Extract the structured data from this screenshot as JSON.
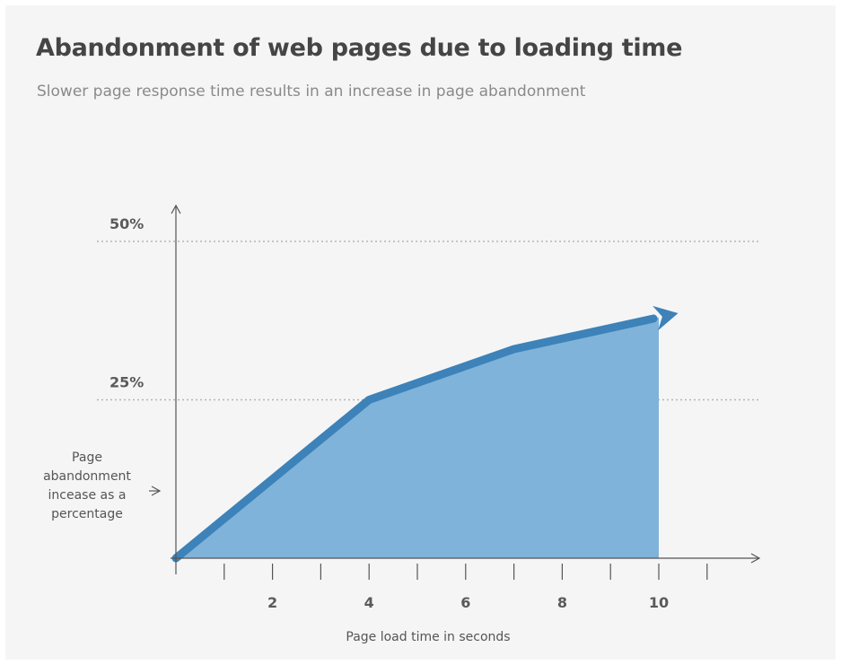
{
  "header": {
    "title": "Abandonment of web pages due to loading time",
    "subtitle": "Slower page response time results in an increase in page abandonment"
  },
  "colors": {
    "background": "#f5f5f5",
    "area_fill": "#7fb3da",
    "line": "#3d82b8",
    "axis": "#555555",
    "gridline": "#b5b5b5"
  },
  "chart_data": {
    "type": "area",
    "title": "Abandonment of web pages due to loading time",
    "subtitle": "Slower page response time results in an increase in page abandonment",
    "xlabel": "Page load time in seconds",
    "ylabel_lines": [
      "Page",
      "abandonment",
      "incease as a",
      "percentage"
    ],
    "x_ticks": [
      2,
      4,
      6,
      8,
      10
    ],
    "y_ticks": [
      {
        "value": 25,
        "label": "25%"
      },
      {
        "value": 50,
        "label": "50%"
      }
    ],
    "xlim": [
      0,
      12
    ],
    "ylim": [
      0,
      55
    ],
    "grid": "horizontal dotted at 25% and 50%",
    "series": [
      {
        "x": [
          0,
          4,
          7,
          10
        ],
        "y": [
          0,
          25,
          33,
          38
        ]
      }
    ]
  }
}
